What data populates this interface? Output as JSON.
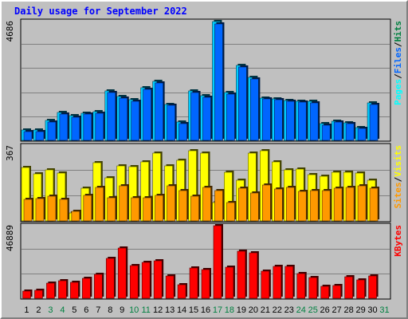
{
  "title": "Daily usage for September 2022",
  "colors": {
    "hits": "#00ccff",
    "files": "#0066ff",
    "pages": "#00ffff",
    "visits": "#ffff00",
    "sites": "#ff9900",
    "kbytes": "#ff0000",
    "hits_label": "#008040",
    "weekend_tick": "#008040",
    "weekday_tick": "#000000",
    "slash": "#000000"
  },
  "chart_data": [
    {
      "type": "bar",
      "panel": "pages-files-hits",
      "y_max_label": "4686",
      "ylim": [
        0,
        4686
      ],
      "right_label": [
        {
          "text": "Pages",
          "color_key": "pages"
        },
        {
          "text": "/",
          "color_key": "slash"
        },
        {
          "text": "Files",
          "color_key": "files"
        },
        {
          "text": "/",
          "color_key": "slash"
        },
        {
          "text": "Hits",
          "color_key": "hits_label"
        }
      ],
      "categories": [
        "1",
        "2",
        "3",
        "4",
        "5",
        "6",
        "7",
        "8",
        "9",
        "10",
        "11",
        "12",
        "13",
        "14",
        "15",
        "16",
        "17",
        "18",
        "19",
        "20",
        "21",
        "22",
        "23",
        "24",
        "25",
        "26",
        "27",
        "28",
        "29",
        "30",
        "31"
      ],
      "series": [
        {
          "name": "Hits",
          "color_key": "hits",
          "values": [
            410,
            410,
            780,
            1100,
            980,
            1080,
            1120,
            1960,
            1720,
            1600,
            2080,
            2320,
            1420,
            710,
            1950,
            1770,
            4686,
            1880,
            2950,
            2490,
            1680,
            1650,
            1580,
            1550,
            1530,
            650,
            760,
            700,
            510,
            1480,
            0
          ]
        },
        {
          "name": "Files",
          "color_key": "files",
          "values": [
            360,
            360,
            730,
            1040,
            920,
            1030,
            1060,
            1900,
            1660,
            1540,
            2020,
            2260,
            1370,
            660,
            1890,
            1710,
            4600,
            1820,
            2880,
            2430,
            1630,
            1600,
            1540,
            1500,
            1480,
            600,
            710,
            650,
            460,
            1400,
            0
          ]
        }
      ]
    },
    {
      "type": "bar",
      "panel": "sites-visits",
      "y_max_label": "367",
      "ylim": [
        0,
        367
      ],
      "right_label": [
        {
          "text": "Sites",
          "color_key": "sites"
        },
        {
          "text": "/",
          "color_key": "slash"
        },
        {
          "text": "Visits",
          "color_key": "visits"
        }
      ],
      "categories": [
        "1",
        "2",
        "3",
        "4",
        "5",
        "6",
        "7",
        "8",
        "9",
        "10",
        "11",
        "12",
        "13",
        "14",
        "15",
        "16",
        "17",
        "18",
        "19",
        "20",
        "21",
        "22",
        "23",
        "24",
        "25",
        "26",
        "27",
        "28",
        "29",
        "30",
        "31"
      ],
      "series": [
        {
          "name": "Visits",
          "color_key": "visits",
          "values": [
            260,
            230,
            250,
            235,
            40,
            160,
            285,
            210,
            270,
            265,
            290,
            330,
            270,
            295,
            345,
            330,
            90,
            240,
            200,
            330,
            345,
            290,
            250,
            255,
            225,
            220,
            240,
            240,
            235,
            200,
            0
          ]
        },
        {
          "name": "Sites",
          "color_key": "sites",
          "values": [
            105,
            110,
            120,
            105,
            45,
            125,
            165,
            115,
            170,
            115,
            115,
            125,
            170,
            150,
            120,
            165,
            150,
            90,
            160,
            135,
            175,
            155,
            165,
            145,
            150,
            150,
            160,
            165,
            170,
            160,
            0
          ]
        }
      ]
    },
    {
      "type": "bar",
      "panel": "kbytes",
      "y_max_label": "46889",
      "ylim": [
        0,
        46889
      ],
      "right_label": [
        {
          "text": "KBytes",
          "color_key": "kbytes"
        }
      ],
      "categories": [
        "1",
        "2",
        "3",
        "4",
        "5",
        "6",
        "7",
        "8",
        "9",
        "10",
        "11",
        "12",
        "13",
        "14",
        "15",
        "16",
        "17",
        "18",
        "19",
        "20",
        "21",
        "22",
        "23",
        "24",
        "25",
        "26",
        "27",
        "28",
        "29",
        "30",
        "31"
      ],
      "series": [
        {
          "name": "KBytes",
          "color_key": "kbytes",
          "values": [
            4800,
            5200,
            9900,
            11500,
            10500,
            12700,
            15600,
            26000,
            32700,
            20900,
            23400,
            24200,
            14400,
            8600,
            19600,
            18800,
            46889,
            19900,
            30600,
            29200,
            17700,
            20500,
            20500,
            16200,
            13200,
            7600,
            8400,
            13800,
            12000,
            14500,
            0
          ]
        }
      ]
    }
  ],
  "weekend_days": [
    3,
    4,
    10,
    11,
    17,
    18,
    24,
    25,
    31
  ]
}
